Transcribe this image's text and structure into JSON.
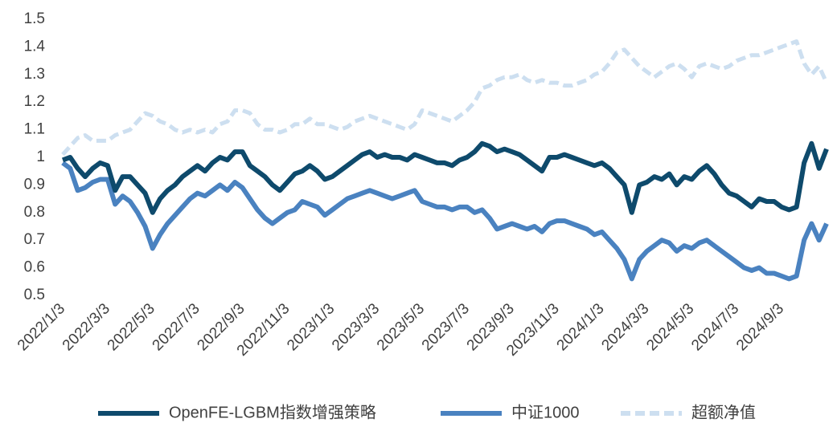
{
  "chart_data": {
    "type": "line",
    "categories": [
      "2022/1/3",
      null,
      null,
      null,
      null,
      null,
      "2022/3/3",
      null,
      null,
      null,
      null,
      null,
      "2022/5/3",
      null,
      null,
      null,
      null,
      null,
      "2022/7/3",
      null,
      null,
      null,
      null,
      null,
      "2022/9/3",
      null,
      null,
      null,
      null,
      null,
      "2022/11/3",
      null,
      null,
      null,
      null,
      null,
      "2023/1/3",
      null,
      null,
      null,
      null,
      null,
      "2023/3/3",
      null,
      null,
      null,
      null,
      null,
      "2023/5/3",
      null,
      null,
      null,
      null,
      null,
      "2023/7/3",
      null,
      null,
      null,
      null,
      null,
      "2023/9/3",
      null,
      null,
      null,
      null,
      null,
      "2023/11/3",
      null,
      null,
      null,
      null,
      null,
      "2024/1/3",
      null,
      null,
      null,
      null,
      null,
      "2024/3/3",
      null,
      null,
      null,
      null,
      null,
      "2024/5/3",
      null,
      null,
      null,
      null,
      null,
      "2024/7/3",
      null,
      null,
      null,
      null,
      null,
      "2024/9/3",
      null,
      null,
      null,
      null,
      null,
      null
    ],
    "series": [
      {
        "name": "OpenFE-LGBM指数增强策略",
        "color": "#0e4a6c",
        "dashed": false,
        "values": [
          0.99,
          1.0,
          0.96,
          0.93,
          0.96,
          0.98,
          0.97,
          0.88,
          0.93,
          0.93,
          0.9,
          0.87,
          0.8,
          0.85,
          0.88,
          0.9,
          0.93,
          0.95,
          0.97,
          0.95,
          0.98,
          1.0,
          0.99,
          1.02,
          1.02,
          0.97,
          0.95,
          0.93,
          0.9,
          0.88,
          0.91,
          0.94,
          0.95,
          0.97,
          0.95,
          0.92,
          0.93,
          0.95,
          0.97,
          0.99,
          1.01,
          1.02,
          1.0,
          1.01,
          1.0,
          1.0,
          0.99,
          1.01,
          1.0,
          0.99,
          0.98,
          0.98,
          0.97,
          0.99,
          1.0,
          1.02,
          1.05,
          1.04,
          1.02,
          1.03,
          1.02,
          1.01,
          0.99,
          0.97,
          0.95,
          1.0,
          1.0,
          1.01,
          1.0,
          0.99,
          0.98,
          0.97,
          0.98,
          0.96,
          0.93,
          0.9,
          0.8,
          0.9,
          0.91,
          0.93,
          0.92,
          0.94,
          0.9,
          0.93,
          0.92,
          0.95,
          0.97,
          0.94,
          0.9,
          0.87,
          0.86,
          0.84,
          0.82,
          0.85,
          0.84,
          0.84,
          0.82,
          0.81,
          0.82,
          0.98,
          1.05,
          0.96,
          1.03
        ]
      },
      {
        "name": "中证1000",
        "color": "#4a82c0",
        "dashed": false,
        "values": [
          0.98,
          0.96,
          0.88,
          0.89,
          0.91,
          0.92,
          0.92,
          0.83,
          0.86,
          0.84,
          0.8,
          0.75,
          0.67,
          0.72,
          0.76,
          0.79,
          0.82,
          0.85,
          0.87,
          0.86,
          0.88,
          0.9,
          0.88,
          0.91,
          0.89,
          0.85,
          0.81,
          0.78,
          0.76,
          0.78,
          0.8,
          0.81,
          0.84,
          0.83,
          0.82,
          0.79,
          0.81,
          0.83,
          0.85,
          0.86,
          0.87,
          0.88,
          0.87,
          0.86,
          0.85,
          0.86,
          0.87,
          0.88,
          0.84,
          0.83,
          0.82,
          0.82,
          0.81,
          0.82,
          0.82,
          0.8,
          0.81,
          0.78,
          0.74,
          0.75,
          0.76,
          0.75,
          0.74,
          0.75,
          0.73,
          0.76,
          0.77,
          0.77,
          0.76,
          0.75,
          0.74,
          0.72,
          0.73,
          0.7,
          0.67,
          0.63,
          0.56,
          0.63,
          0.66,
          0.68,
          0.7,
          0.69,
          0.66,
          0.68,
          0.67,
          0.69,
          0.7,
          0.68,
          0.66,
          0.64,
          0.62,
          0.6,
          0.59,
          0.6,
          0.58,
          0.58,
          0.57,
          0.56,
          0.57,
          0.7,
          0.76,
          0.7,
          0.76
        ]
      },
      {
        "name": "超额净值",
        "color": "#cddff0",
        "dashed": true,
        "values": [
          1.01,
          1.04,
          1.07,
          1.08,
          1.06,
          1.06,
          1.06,
          1.08,
          1.09,
          1.1,
          1.13,
          1.16,
          1.15,
          1.13,
          1.12,
          1.1,
          1.09,
          1.1,
          1.09,
          1.1,
          1.09,
          1.12,
          1.13,
          1.17,
          1.17,
          1.16,
          1.12,
          1.1,
          1.1,
          1.09,
          1.1,
          1.12,
          1.12,
          1.14,
          1.12,
          1.12,
          1.11,
          1.1,
          1.11,
          1.13,
          1.14,
          1.15,
          1.14,
          1.13,
          1.12,
          1.11,
          1.1,
          1.12,
          1.17,
          1.16,
          1.15,
          1.14,
          1.13,
          1.15,
          1.17,
          1.2,
          1.25,
          1.26,
          1.28,
          1.29,
          1.29,
          1.3,
          1.28,
          1.27,
          1.28,
          1.27,
          1.27,
          1.26,
          1.26,
          1.27,
          1.28,
          1.3,
          1.31,
          1.34,
          1.38,
          1.39,
          1.36,
          1.33,
          1.31,
          1.29,
          1.31,
          1.33,
          1.34,
          1.32,
          1.29,
          1.33,
          1.34,
          1.33,
          1.32,
          1.33,
          1.35,
          1.36,
          1.37,
          1.37,
          1.38,
          1.39,
          1.4,
          1.41,
          1.42,
          1.34,
          1.3,
          1.33,
          1.27
        ]
      }
    ],
    "ylim": [
      0.5,
      1.5
    ],
    "yticks": [
      0.5,
      0.6,
      0.7,
      0.8,
      0.9,
      1,
      1.1,
      1.2,
      1.3,
      1.4,
      1.5
    ],
    "grid": false,
    "legend": "bottom"
  }
}
